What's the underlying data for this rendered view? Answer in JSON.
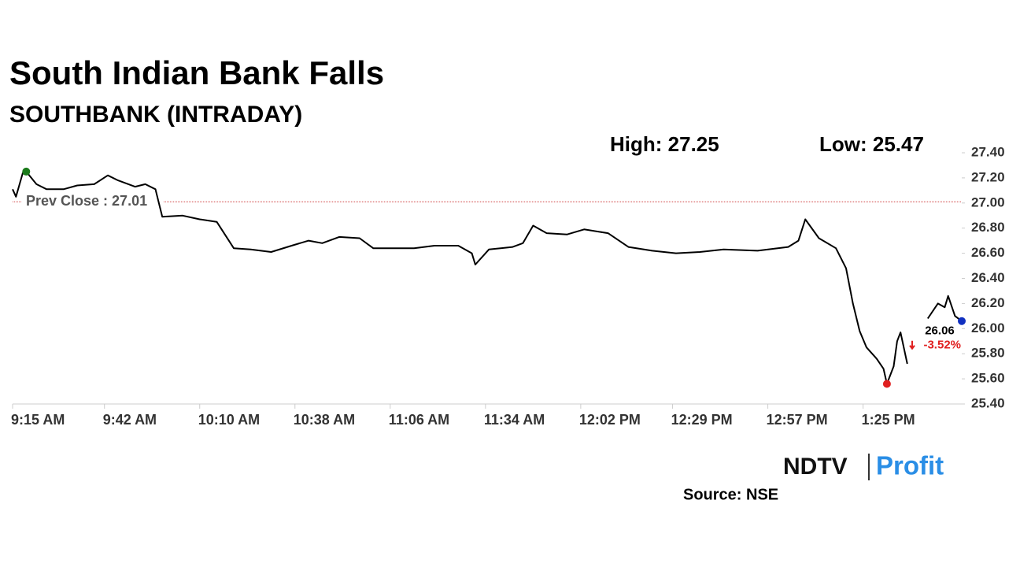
{
  "chart_data": {
    "type": "line",
    "title": "South Indian Bank Falls",
    "subtitle": "SOUTHBANK (INTRADAY)",
    "high_label": "High: 27.25",
    "low_label": "Low: 25.47",
    "prev_close": {
      "value": 27.01,
      "label": "Prev Close : 27.01"
    },
    "change_label": "-3.52%",
    "source": "Source: NSE",
    "logo": {
      "left": "NDTV",
      "right": "Profit"
    },
    "x": [
      "9:15 AM",
      "9:16 AM",
      "9:18 AM",
      "9:19 AM",
      "9:22 AM",
      "9:25 AM",
      "9:30 AM",
      "9:34 AM",
      "9:39 AM",
      "9:43 AM",
      "9:46 AM",
      "9:51 AM",
      "9:54 AM",
      "9:57 AM",
      "9:59 AM",
      "10:05 AM",
      "10:10 AM",
      "10:15 AM",
      "10:20 AM",
      "10:25 AM",
      "10:31 AM",
      "10:37 AM",
      "10:42 AM",
      "10:46 AM",
      "10:51 AM",
      "10:57 AM",
      "11:01 AM",
      "11:07 AM",
      "11:13 AM",
      "11:19 AM",
      "11:26 AM",
      "11:30 AM",
      "11:31 AM",
      "11:35 AM",
      "11:42 AM",
      "11:45 AM",
      "11:48 AM",
      "11:52 AM",
      "11:58 AM",
      "12:03 PM",
      "12:10 PM",
      "12:16 PM",
      "12:23 PM",
      "12:30 PM",
      "12:37 PM",
      "12:44 PM",
      "12:54 PM",
      "1:03 PM",
      "1:06 PM",
      "1:08 PM",
      "1:12 PM",
      "1:17 PM",
      "1:20 PM",
      "1:22 PM",
      "1:24 PM",
      "1:26 PM",
      "1:29 PM",
      "1:31 PM",
      "1:32 PM",
      "1:34 PM",
      "1:35 PM",
      "1:36 PM",
      "1:38 PM",
      "1:39 PM",
      "1:44 PM",
      "1:47 PM",
      "1:49 PM",
      "1:50 PM",
      "1:52 PM",
      "1:54 PM"
    ],
    "series": [
      {
        "name": "SOUTHBANK",
        "color": "#000000",
        "values": [
          27.11,
          27.05,
          27.24,
          27.25,
          27.15,
          27.11,
          27.11,
          27.14,
          27.15,
          27.22,
          27.18,
          27.13,
          27.15,
          27.11,
          26.89,
          26.9,
          26.87,
          26.85,
          26.64,
          26.63,
          26.61,
          26.66,
          26.7,
          26.68,
          26.73,
          26.72,
          26.64,
          26.64,
          26.64,
          26.66,
          26.66,
          26.6,
          26.51,
          26.63,
          26.65,
          26.68,
          26.82,
          26.76,
          26.75,
          26.79,
          26.76,
          26.65,
          26.62,
          26.6,
          26.61,
          26.63,
          26.62,
          26.65,
          26.7,
          26.87,
          26.72,
          26.64,
          26.48,
          26.2,
          25.98,
          25.85,
          25.76,
          25.68,
          25.56,
          25.7,
          25.9,
          25.97,
          25.72,
          null,
          26.08,
          26.2,
          26.17,
          26.26,
          26.1,
          26.06
        ]
      }
    ],
    "high_color": "#1a7a1a",
    "low_color": "#e02020",
    "last_color": "#1030c0",
    "prev_close_color": "#d04040",
    "xlim": [
      "9:15 AM",
      "1:54 PM"
    ],
    "xticks": [
      "9:15 AM",
      "9:42 AM",
      "10:10 AM",
      "10:38 AM",
      "11:06 AM",
      "11:34 AM",
      "12:02 PM",
      "12:29 PM",
      "12:57 PM",
      "1:25 PM"
    ],
    "ylim": [
      25.4,
      27.4
    ],
    "yticks": [
      {
        "value": 25.4,
        "label": "25.40"
      },
      {
        "value": 25.6,
        "label": "25.60"
      },
      {
        "value": 25.8,
        "label": "25.80"
      },
      {
        "value": 26.0,
        "label": "26.00"
      },
      {
        "value": 26.2,
        "label": "26.20"
      },
      {
        "value": 26.4,
        "label": "26.40"
      },
      {
        "value": 26.6,
        "label": "26.60"
      },
      {
        "value": 26.8,
        "label": "26.80"
      },
      {
        "value": 27.0,
        "label": "27.00"
      },
      {
        "value": 27.2,
        "label": "27.20"
      },
      {
        "value": 27.4,
        "label": "27.40"
      }
    ],
    "grid": false
  }
}
